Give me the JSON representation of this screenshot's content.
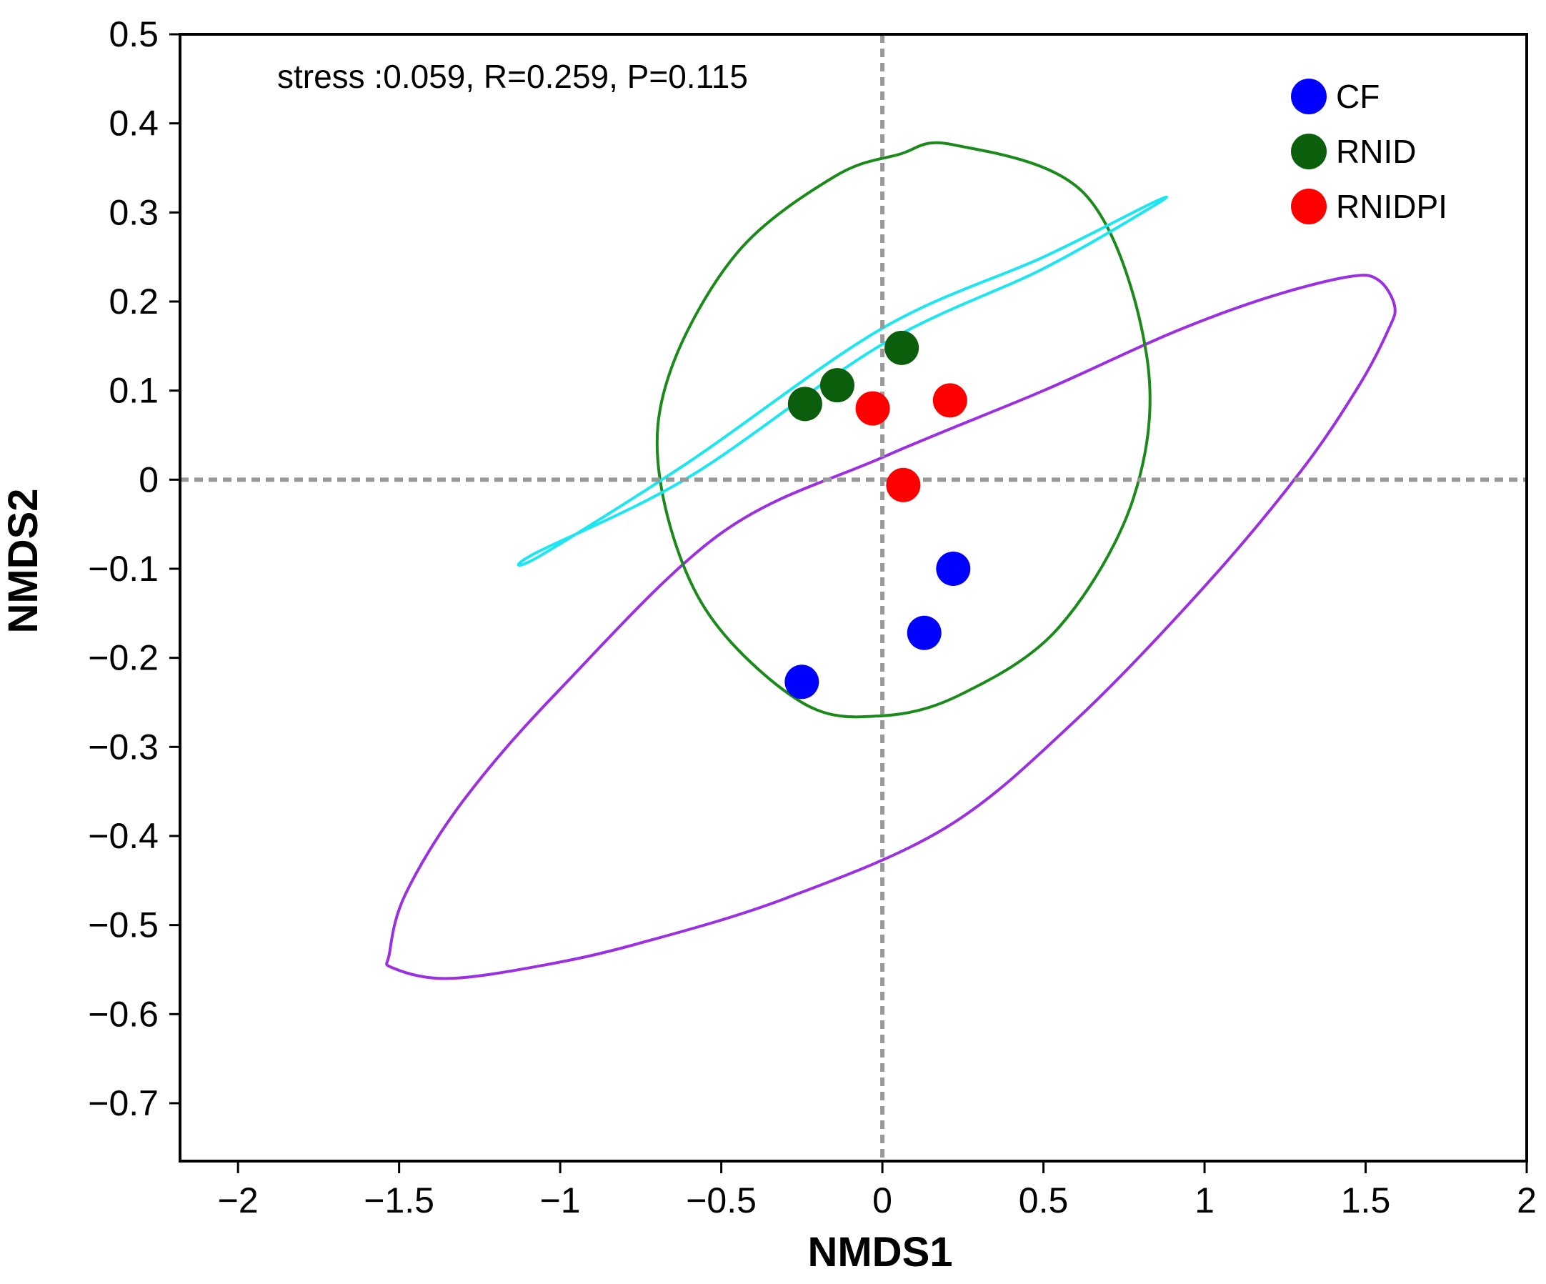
{
  "chart_data": {
    "type": "scatter",
    "title": "",
    "xlabel": "NMDS1",
    "ylabel": "NMDS2",
    "xlim": [
      -2.18,
      2.0
    ],
    "ylim": [
      -0.765,
      0.5
    ],
    "xticks": [
      -2,
      -1.5,
      -1,
      -0.5,
      0,
      0.5,
      1,
      1.5,
      2
    ],
    "xtick_labels": [
      "−2",
      "−1.5",
      "−1",
      "−0.5",
      "0",
      "0.5",
      "1",
      "1.5",
      "2"
    ],
    "yticks": [
      0.5,
      0.4,
      0.3,
      0.2,
      0.1,
      0,
      -0.1,
      -0.2,
      -0.3,
      -0.4,
      -0.5,
      -0.6,
      -0.7
    ],
    "ytick_labels": [
      "0.5",
      "0.4",
      "0.3",
      "0.2",
      "0.1",
      "0",
      "−0.1",
      "−0.2",
      "−0.3",
      "−0.4",
      "−0.5",
      "−0.6",
      "−0.7"
    ],
    "annotation": "stress :0.059, R=0.259, P=0.115",
    "legend_position": "top-right",
    "reference_lines": {
      "x": 0,
      "y": 0,
      "color": "#999999",
      "style": "dashed"
    },
    "series": [
      {
        "name": "CF",
        "color": "#0000ff",
        "points": [
          {
            "x": 0.22,
            "y": -0.1
          },
          {
            "x": 0.13,
            "y": -0.172
          },
          {
            "x": -0.25,
            "y": -0.227
          }
        ]
      },
      {
        "name": "RNID",
        "color": "#0b5e0b",
        "points": [
          {
            "x": 0.06,
            "y": 0.148
          },
          {
            "x": -0.14,
            "y": 0.106
          },
          {
            "x": -0.24,
            "y": 0.085
          }
        ]
      },
      {
        "name": "RNIDPI",
        "color": "#ff0000",
        "points": [
          {
            "x": 0.21,
            "y": 0.089
          },
          {
            "x": -0.03,
            "y": 0.08
          },
          {
            "x": 0.065,
            "y": -0.006
          }
        ]
      }
    ],
    "ellipses": [
      {
        "group": "CF",
        "color": "#9b30e0",
        "points": [
          [
            1.59,
            0.195
          ],
          [
            1.57,
            0.168
          ],
          [
            1.48,
            0.106
          ],
          [
            1.3,
            0.01
          ],
          [
            1.0,
            -0.12
          ],
          [
            0.6,
            -0.27
          ],
          [
            0.2,
            -0.39
          ],
          [
            -0.3,
            -0.47
          ],
          [
            -0.75,
            -0.52
          ],
          [
            -1.05,
            -0.545
          ],
          [
            -1.35,
            -0.56
          ],
          [
            -1.52,
            -0.548
          ],
          [
            -1.53,
            -0.532
          ],
          [
            -1.48,
            -0.465
          ],
          [
            -1.3,
            -0.36
          ],
          [
            -1.0,
            -0.235
          ],
          [
            -0.5,
            -0.06
          ],
          [
            0.0,
            0.025
          ],
          [
            0.5,
            0.1
          ],
          [
            0.9,
            0.165
          ],
          [
            1.2,
            0.205
          ],
          [
            1.45,
            0.228
          ],
          [
            1.54,
            0.224
          ]
        ]
      },
      {
        "group": "RNID",
        "color": "#1a8a1a",
        "points": [
          [
            0.22,
            0.376
          ],
          [
            0.63,
            0.32
          ],
          [
            0.82,
            0.14
          ],
          [
            0.78,
            -0.02
          ],
          [
            0.55,
            -0.165
          ],
          [
            0.25,
            -0.24
          ],
          [
            0.0,
            -0.265
          ],
          [
            -0.25,
            -0.25
          ],
          [
            -0.55,
            -0.145
          ],
          [
            -0.69,
            0.0
          ],
          [
            -0.66,
            0.12
          ],
          [
            -0.45,
            0.255
          ],
          [
            -0.15,
            0.34
          ],
          [
            0.05,
            0.365
          ]
        ]
      },
      {
        "group": "RNIDPI",
        "color": "#1de6f0",
        "points": [
          [
            -1.06,
            -0.085
          ],
          [
            -0.6,
            0.02
          ],
          [
            0.0,
            0.17
          ],
          [
            0.5,
            0.25
          ],
          [
            0.84,
            0.311
          ],
          [
            0.84,
            0.307
          ],
          [
            0.5,
            0.237
          ],
          [
            0.0,
            0.152
          ],
          [
            -0.6,
            0.003
          ],
          [
            -1.08,
            -0.083
          ]
        ]
      }
    ]
  }
}
